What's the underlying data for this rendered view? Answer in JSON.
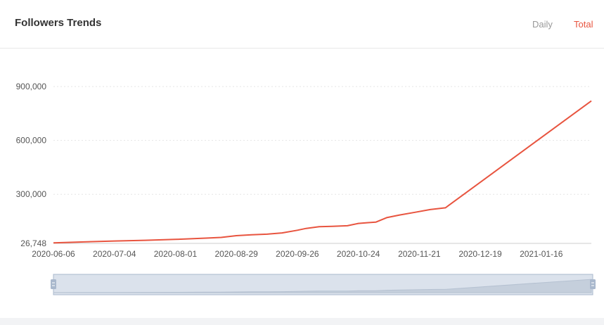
{
  "header": {
    "title": "Followers Trends",
    "tabs": [
      {
        "label": "Daily",
        "active": false
      },
      {
        "label": "Total",
        "active": true
      }
    ]
  },
  "colors": {
    "line": "#e8543f",
    "active_tab": "#e8543f",
    "inactive_tab": "#999999",
    "grid": "#e6e6e6",
    "zoom_fill": "#dbe2ec",
    "zoom_border": "#a9b8cd"
  },
  "chart_data": {
    "type": "line",
    "title": "Followers Trends",
    "xlabel": "",
    "ylabel": "",
    "x_tick_labels": [
      "2020-06-06",
      "2020-07-04",
      "2020-08-01",
      "2020-08-29",
      "2020-09-26",
      "2020-10-24",
      "2020-11-21",
      "2020-12-19",
      "2021-01-16"
    ],
    "y_tick_labels": [
      "26,748",
      "300,000",
      "600,000",
      "900,000"
    ],
    "y_ticks": [
      26748,
      300000,
      600000,
      900000
    ],
    "ylim": [
      26748,
      990000
    ],
    "xlim": [
      "2020-06-06",
      "2021-02-08"
    ],
    "grid": true,
    "series": [
      {
        "x": [
          "2020-06-06",
          "2020-06-20",
          "2020-07-04",
          "2020-07-18",
          "2020-08-01",
          "2020-08-15",
          "2020-08-22",
          "2020-08-29",
          "2020-09-05",
          "2020-09-12",
          "2020-09-19",
          "2020-09-26",
          "2020-09-30",
          "2020-10-03",
          "2020-10-06",
          "2020-10-12",
          "2020-10-19",
          "2020-10-24",
          "2020-10-28",
          "2020-11-01",
          "2020-11-06",
          "2020-11-12",
          "2020-11-19",
          "2020-11-26",
          "2020-12-03",
          "2021-02-08"
        ],
        "y": [
          30000,
          35000,
          40000,
          44000,
          49000,
          56000,
          60000,
          70000,
          75000,
          78000,
          85000,
          100000,
          110000,
          115000,
          120000,
          122000,
          125000,
          138000,
          142000,
          145000,
          170000,
          185000,
          200000,
          215000,
          225000,
          820000
        ]
      }
    ]
  }
}
